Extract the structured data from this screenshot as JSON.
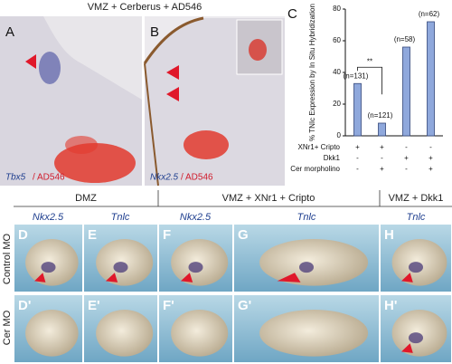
{
  "header": {
    "title": "VMZ + Cerberus + AD546"
  },
  "top_panels": [
    {
      "letter": "A",
      "stain": "Tbx5",
      "tracer": "/ AD546"
    },
    {
      "letter": "B",
      "stain": "Nkx2.5",
      "tracer": "/ AD546"
    }
  ],
  "chart_data": {
    "type": "bar",
    "panel": "C",
    "ylabel": "% TNIc Expression by In Situ Hybridization",
    "categories": [
      null,
      null,
      null,
      null
    ],
    "values": [
      33,
      8,
      56,
      72
    ],
    "annotations": [
      "(n=131)",
      "(n=121)",
      "(n=58)",
      "(n=62)"
    ],
    "significance": "**",
    "color": "#8fa8dc",
    "ylim": [
      0,
      80
    ],
    "yticks": [
      0,
      20,
      40,
      60,
      80
    ],
    "conditions": [
      {
        "label": "XNr1+ Cripto",
        "signs": [
          "+",
          "+",
          "-",
          "-"
        ]
      },
      {
        "label": "Dkk1",
        "signs": [
          "-",
          "-",
          "+",
          "+"
        ]
      },
      {
        "label": "Cer morpholino",
        "signs": [
          "-",
          "+",
          "-",
          "+"
        ]
      }
    ]
  },
  "bottom": {
    "groups": [
      "DMZ",
      "VMZ + XNr1 + Cripto",
      "VMZ + Dkk1"
    ],
    "columns": [
      "Nkx2.5",
      "Tnlc",
      "Nkx2.5",
      "Tnlc",
      "Tnlc"
    ],
    "rows": [
      "Control MO",
      "Cer MO"
    ],
    "letters": [
      [
        "D",
        "E",
        "F",
        "G",
        "H"
      ],
      [
        "D'",
        "E'",
        "F'",
        "G'",
        "H'"
      ]
    ]
  }
}
